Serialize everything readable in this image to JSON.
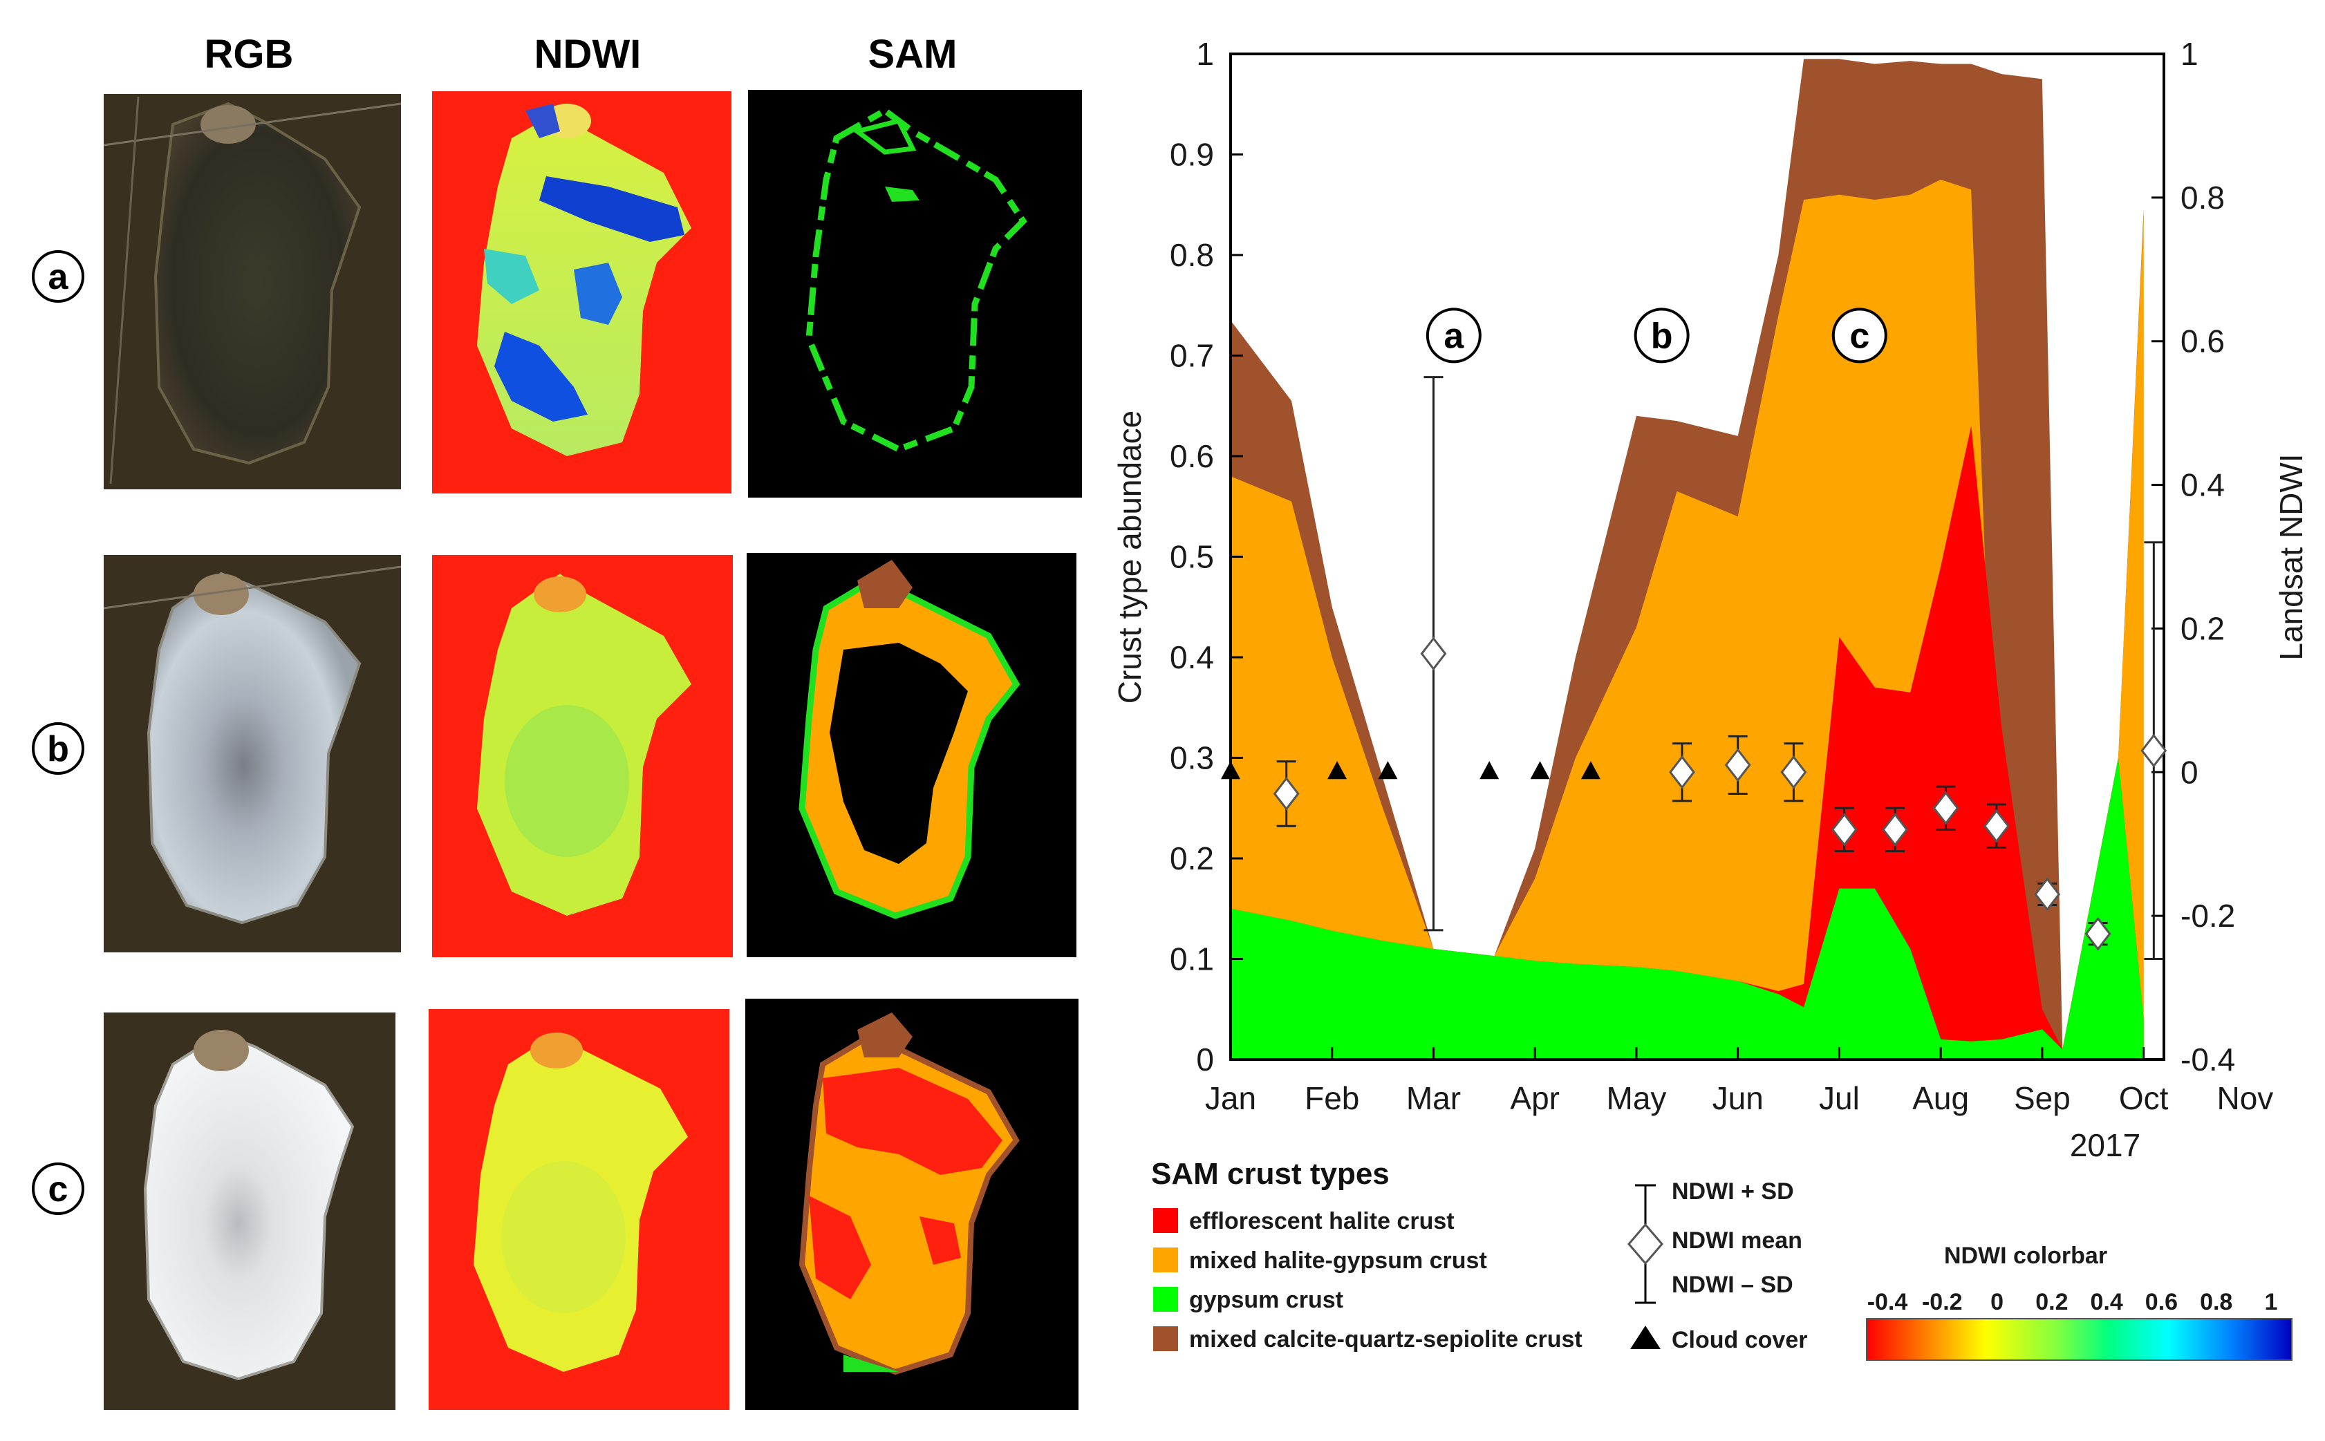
{
  "panels": {
    "column_headers": [
      "RGB",
      "NDWI",
      "SAM"
    ],
    "row_labels": [
      "a",
      "b",
      "c"
    ]
  },
  "chart_data": {
    "type": "area",
    "x": [
      "Jan",
      "Jan+",
      "Feb",
      "Feb+",
      "Mar",
      "Mar+",
      "Apr",
      "Apr+",
      "May",
      "May+",
      "Jun",
      "Jun+",
      "Jul",
      "Jul+",
      "Aug",
      "Aug+",
      "Sep",
      "Sep+",
      "Oct",
      "Oct+"
    ],
    "xpos": [
      0,
      0.35,
      1.0,
      1.6,
      2.0,
      2.4,
      3.0,
      3.6,
      4.0,
      4.55,
      5.0,
      5.55,
      6.0,
      6.5,
      7.0,
      7.4,
      8.0,
      8.6,
      8.75,
      9.0
    ],
    "series": [
      {
        "name": "gypsum crust",
        "color": "#00ff00",
        "x": [
          0,
          0.6,
          1.0,
          1.5,
          2.0,
          2.6,
          3.0,
          3.4,
          4.0,
          4.4,
          5.0,
          5.4,
          5.65,
          6.0,
          6.35,
          6.7,
          7.0,
          7.3,
          7.6,
          8.0,
          8.2,
          8.75,
          9.0
        ],
        "y": [
          0.15,
          0.138,
          0.128,
          0.118,
          0.11,
          0.103,
          0.098,
          0.095,
          0.092,
          0.088,
          0.078,
          0.065,
          0.052,
          0.17,
          0.17,
          0.11,
          0.02,
          0.018,
          0.02,
          0.03,
          0.01,
          0.3,
          0.04
        ]
      },
      {
        "name": "efflorescent halite crust",
        "color": "#ff0000",
        "x": [
          0,
          0.6,
          1.0,
          1.5,
          2.0,
          2.6,
          3.0,
          3.4,
          4.0,
          4.4,
          5.0,
          5.4,
          5.65,
          6.0,
          6.35,
          6.7,
          7.0,
          7.3,
          7.6,
          8.0,
          8.2,
          8.75,
          9.0
        ],
        "y": [
          0.15,
          0.138,
          0.128,
          0.118,
          0.11,
          0.103,
          0.098,
          0.095,
          0.092,
          0.088,
          0.078,
          0.068,
          0.075,
          0.42,
          0.37,
          0.365,
          0.49,
          0.63,
          0.33,
          0.05,
          0.01,
          0.3,
          0.04
        ]
      },
      {
        "name": "mixed halite-gypsum crust",
        "color": "#ffa500",
        "x": [
          0,
          0.6,
          1.0,
          1.5,
          2.0,
          2.6,
          3.0,
          3.4,
          4.0,
          4.4,
          5.0,
          5.4,
          5.65,
          6.0,
          6.35,
          6.7,
          7.0,
          7.3,
          7.6,
          8.0,
          8.2,
          8.75,
          9.0
        ],
        "y": [
          0.58,
          0.555,
          0.4,
          0.25,
          0.11,
          0.103,
          0.18,
          0.3,
          0.43,
          0.565,
          0.54,
          0.74,
          0.855,
          0.86,
          0.855,
          0.86,
          0.875,
          0.865,
          0.05,
          0.03,
          0.01,
          0.3,
          0.84
        ]
      },
      {
        "name": "mixed calcite-quartz-sepiolite crust",
        "color": "#a0522d",
        "x": [
          0,
          0.6,
          1.0,
          1.5,
          2.0,
          2.6,
          3.0,
          3.4,
          4.0,
          4.4,
          5.0,
          5.4,
          5.65,
          6.0,
          6.35,
          6.7,
          7.0,
          7.3,
          7.6,
          8.0,
          8.2,
          8.75,
          9.0
        ],
        "y": [
          0.735,
          0.655,
          0.45,
          0.28,
          0.11,
          0.103,
          0.21,
          0.4,
          0.64,
          0.635,
          0.62,
          0.8,
          0.995,
          0.995,
          0.99,
          0.993,
          0.99,
          0.99,
          0.98,
          0.975,
          0.01,
          0.3,
          0.845
        ]
      }
    ],
    "ndwi_points": [
      {
        "x": 0.55,
        "mean": -0.03,
        "sd": 0.045
      },
      {
        "x": 2.0,
        "mean": 0.165,
        "sd": 0.385
      },
      {
        "x": 4.45,
        "mean": 0.0,
        "sd": 0.04
      },
      {
        "x": 5.0,
        "mean": 0.01,
        "sd": 0.04
      },
      {
        "x": 5.55,
        "mean": 0.0,
        "sd": 0.04
      },
      {
        "x": 6.05,
        "mean": -0.08,
        "sd": 0.03
      },
      {
        "x": 6.55,
        "mean": -0.08,
        "sd": 0.03
      },
      {
        "x": 7.05,
        "mean": -0.05,
        "sd": 0.03
      },
      {
        "x": 7.55,
        "mean": -0.075,
        "sd": 0.03
      },
      {
        "x": 8.05,
        "mean": -0.17,
        "sd": 0.015
      },
      {
        "x": 8.55,
        "mean": -0.225,
        "sd": 0.015
      },
      {
        "x": 9.1,
        "mean": 0.03,
        "sd": 0.29
      }
    ],
    "cloud_cover_x": [
      0.0,
      1.05,
      1.55,
      2.55,
      3.05,
      3.55
    ],
    "cloud_cover_y": 0.0,
    "annotations": [
      {
        "label": "a",
        "x": 2.2,
        "y": 0.72
      },
      {
        "label": "b",
        "x": 4.25,
        "y": 0.72
      },
      {
        "label": "c",
        "x": 6.2,
        "y": 0.72
      }
    ],
    "xticks": [
      "Jan",
      "Feb",
      "Mar",
      "Apr",
      "May",
      "Jun",
      "Jul",
      "Aug",
      "Sep",
      "Oct",
      "Nov"
    ],
    "xlim": [
      0,
      9.2
    ],
    "year_label": "2017",
    "ylim": [
      0,
      1
    ],
    "yticks": [
      "0",
      "0.1",
      "0.2",
      "0.3",
      "0.4",
      "0.5",
      "0.6",
      "0.7",
      "0.8",
      "0.9",
      "1"
    ],
    "ylabel": "Crust type abundace",
    "y2lim": [
      -0.4,
      1
    ],
    "y2ticks": [
      "-0.4",
      "-0.2",
      "0",
      "0.2",
      "0.4",
      "0.6",
      "0.8",
      "1"
    ],
    "y2label": "Landsat NDWI"
  },
  "legend": {
    "title": "SAM crust types",
    "items": [
      {
        "label": "efflorescent halite crust",
        "color": "#ff0000"
      },
      {
        "label": "mixed halite-gypsum crust",
        "color": "#ffa500"
      },
      {
        "label": "gypsum crust",
        "color": "#00ff00"
      },
      {
        "label": "mixed calcite-quartz-sepiolite crust",
        "color": "#a0522d"
      }
    ],
    "ndwi_plus": "NDWI + SD",
    "ndwi_mean": "NDWI mean",
    "ndwi_minus": "NDWI – SD",
    "cloud": "Cloud cover"
  },
  "colorbar": {
    "title": "NDWI colorbar",
    "ticks": [
      "-0.4",
      "-0.2",
      "0",
      "0.2",
      "0.4",
      "0.6",
      "0.8",
      "1"
    ]
  }
}
